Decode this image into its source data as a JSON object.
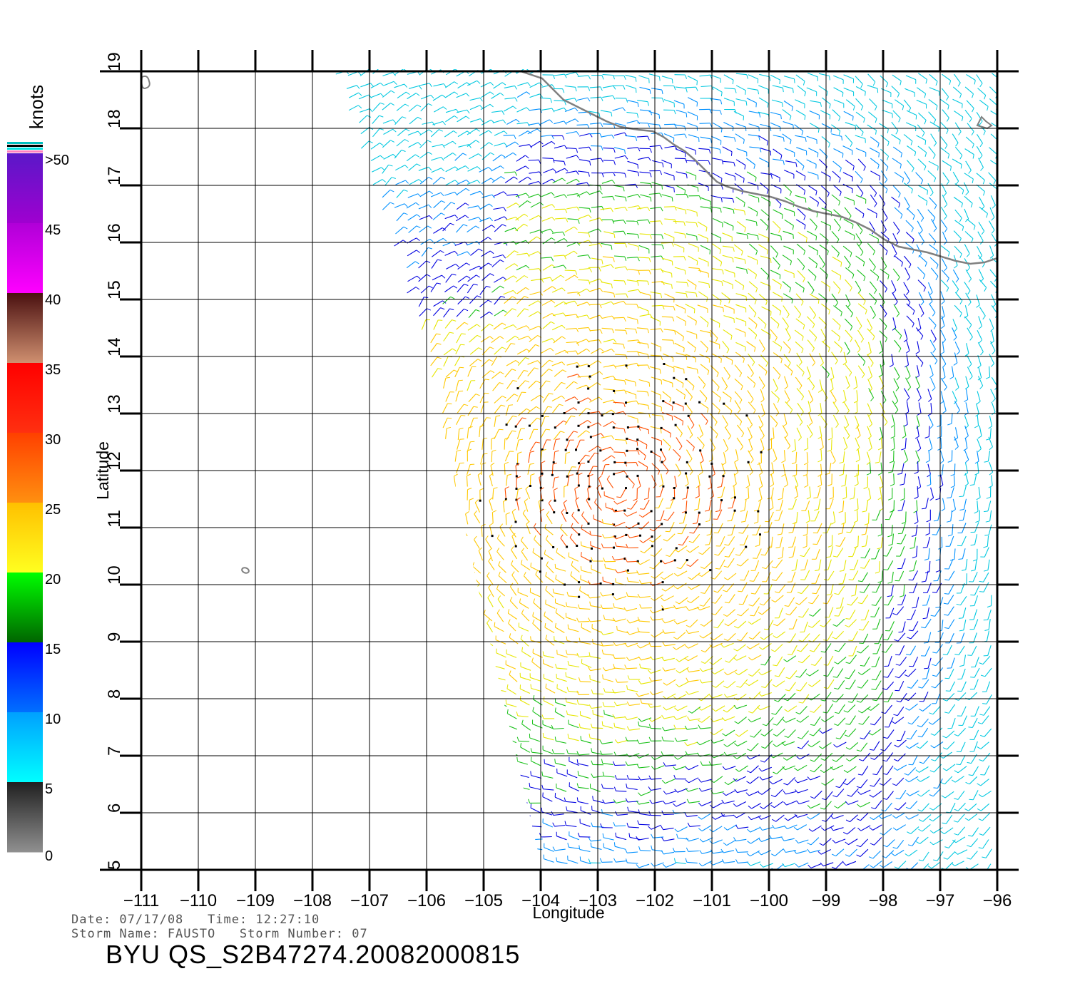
{
  "map": {
    "lon_ticks": [
      "-111",
      "-110",
      "-109",
      "-108",
      "-107",
      "-106",
      "-105",
      "-104",
      "-103",
      "-102",
      "-101",
      "-100",
      "-99",
      "-98",
      "-97",
      "-96"
    ],
    "lat_ticks": [
      "5",
      "6",
      "7",
      "8",
      "9",
      "10",
      "11",
      "12",
      "13",
      "14",
      "15",
      "16",
      "17",
      "18",
      "19"
    ],
    "lon_range": [
      -111,
      -96
    ],
    "lat_range": [
      5,
      19
    ],
    "xlabel": "Longitude",
    "ylabel": "Latitude",
    "grid": true,
    "land_outline_color": "#808080"
  },
  "legend": {
    "unit": "knots",
    "labels": [
      ">50",
      "45",
      "40",
      "35",
      "30",
      "25",
      "20",
      "15",
      "10",
      "5",
      "0"
    ],
    "bands": [
      {
        "from": 50,
        "to": 45,
        "top": "#5a18c8",
        "bottom": "#a000d0"
      },
      {
        "from": 45,
        "to": 40,
        "top": "#b000d8",
        "bottom": "#ff00ff"
      },
      {
        "from": 40,
        "to": 35,
        "top": "#4a1010",
        "bottom": "#d09070"
      },
      {
        "from": 35,
        "to": 30,
        "top": "#ff0000",
        "bottom": "#ff3010"
      },
      {
        "from": 30,
        "to": 25,
        "top": "#ff4000",
        "bottom": "#ff9010"
      },
      {
        "from": 25,
        "to": 20,
        "top": "#ffc000",
        "bottom": "#ffff20"
      },
      {
        "from": 20,
        "to": 15,
        "top": "#00ff00",
        "bottom": "#006400"
      },
      {
        "from": 15,
        "to": 10,
        "top": "#0000ff",
        "bottom": "#0070ff"
      },
      {
        "from": 10,
        "to": 5,
        "top": "#00a0ff",
        "bottom": "#00ffff"
      },
      {
        "from": 5,
        "to": 0,
        "top": "#202020",
        "bottom": "#909090"
      }
    ],
    "top_stripes": [
      "#00c0c0",
      "#000000",
      "#00e0e0",
      "#ff80c0"
    ]
  },
  "info": {
    "line1": "Date: 07/17/08   Time: 12:27:10",
    "line2": "Storm Name: FAUSTO   Storm Number: 07",
    "title": "BYU  QS_S2B47274.20082000815"
  }
}
